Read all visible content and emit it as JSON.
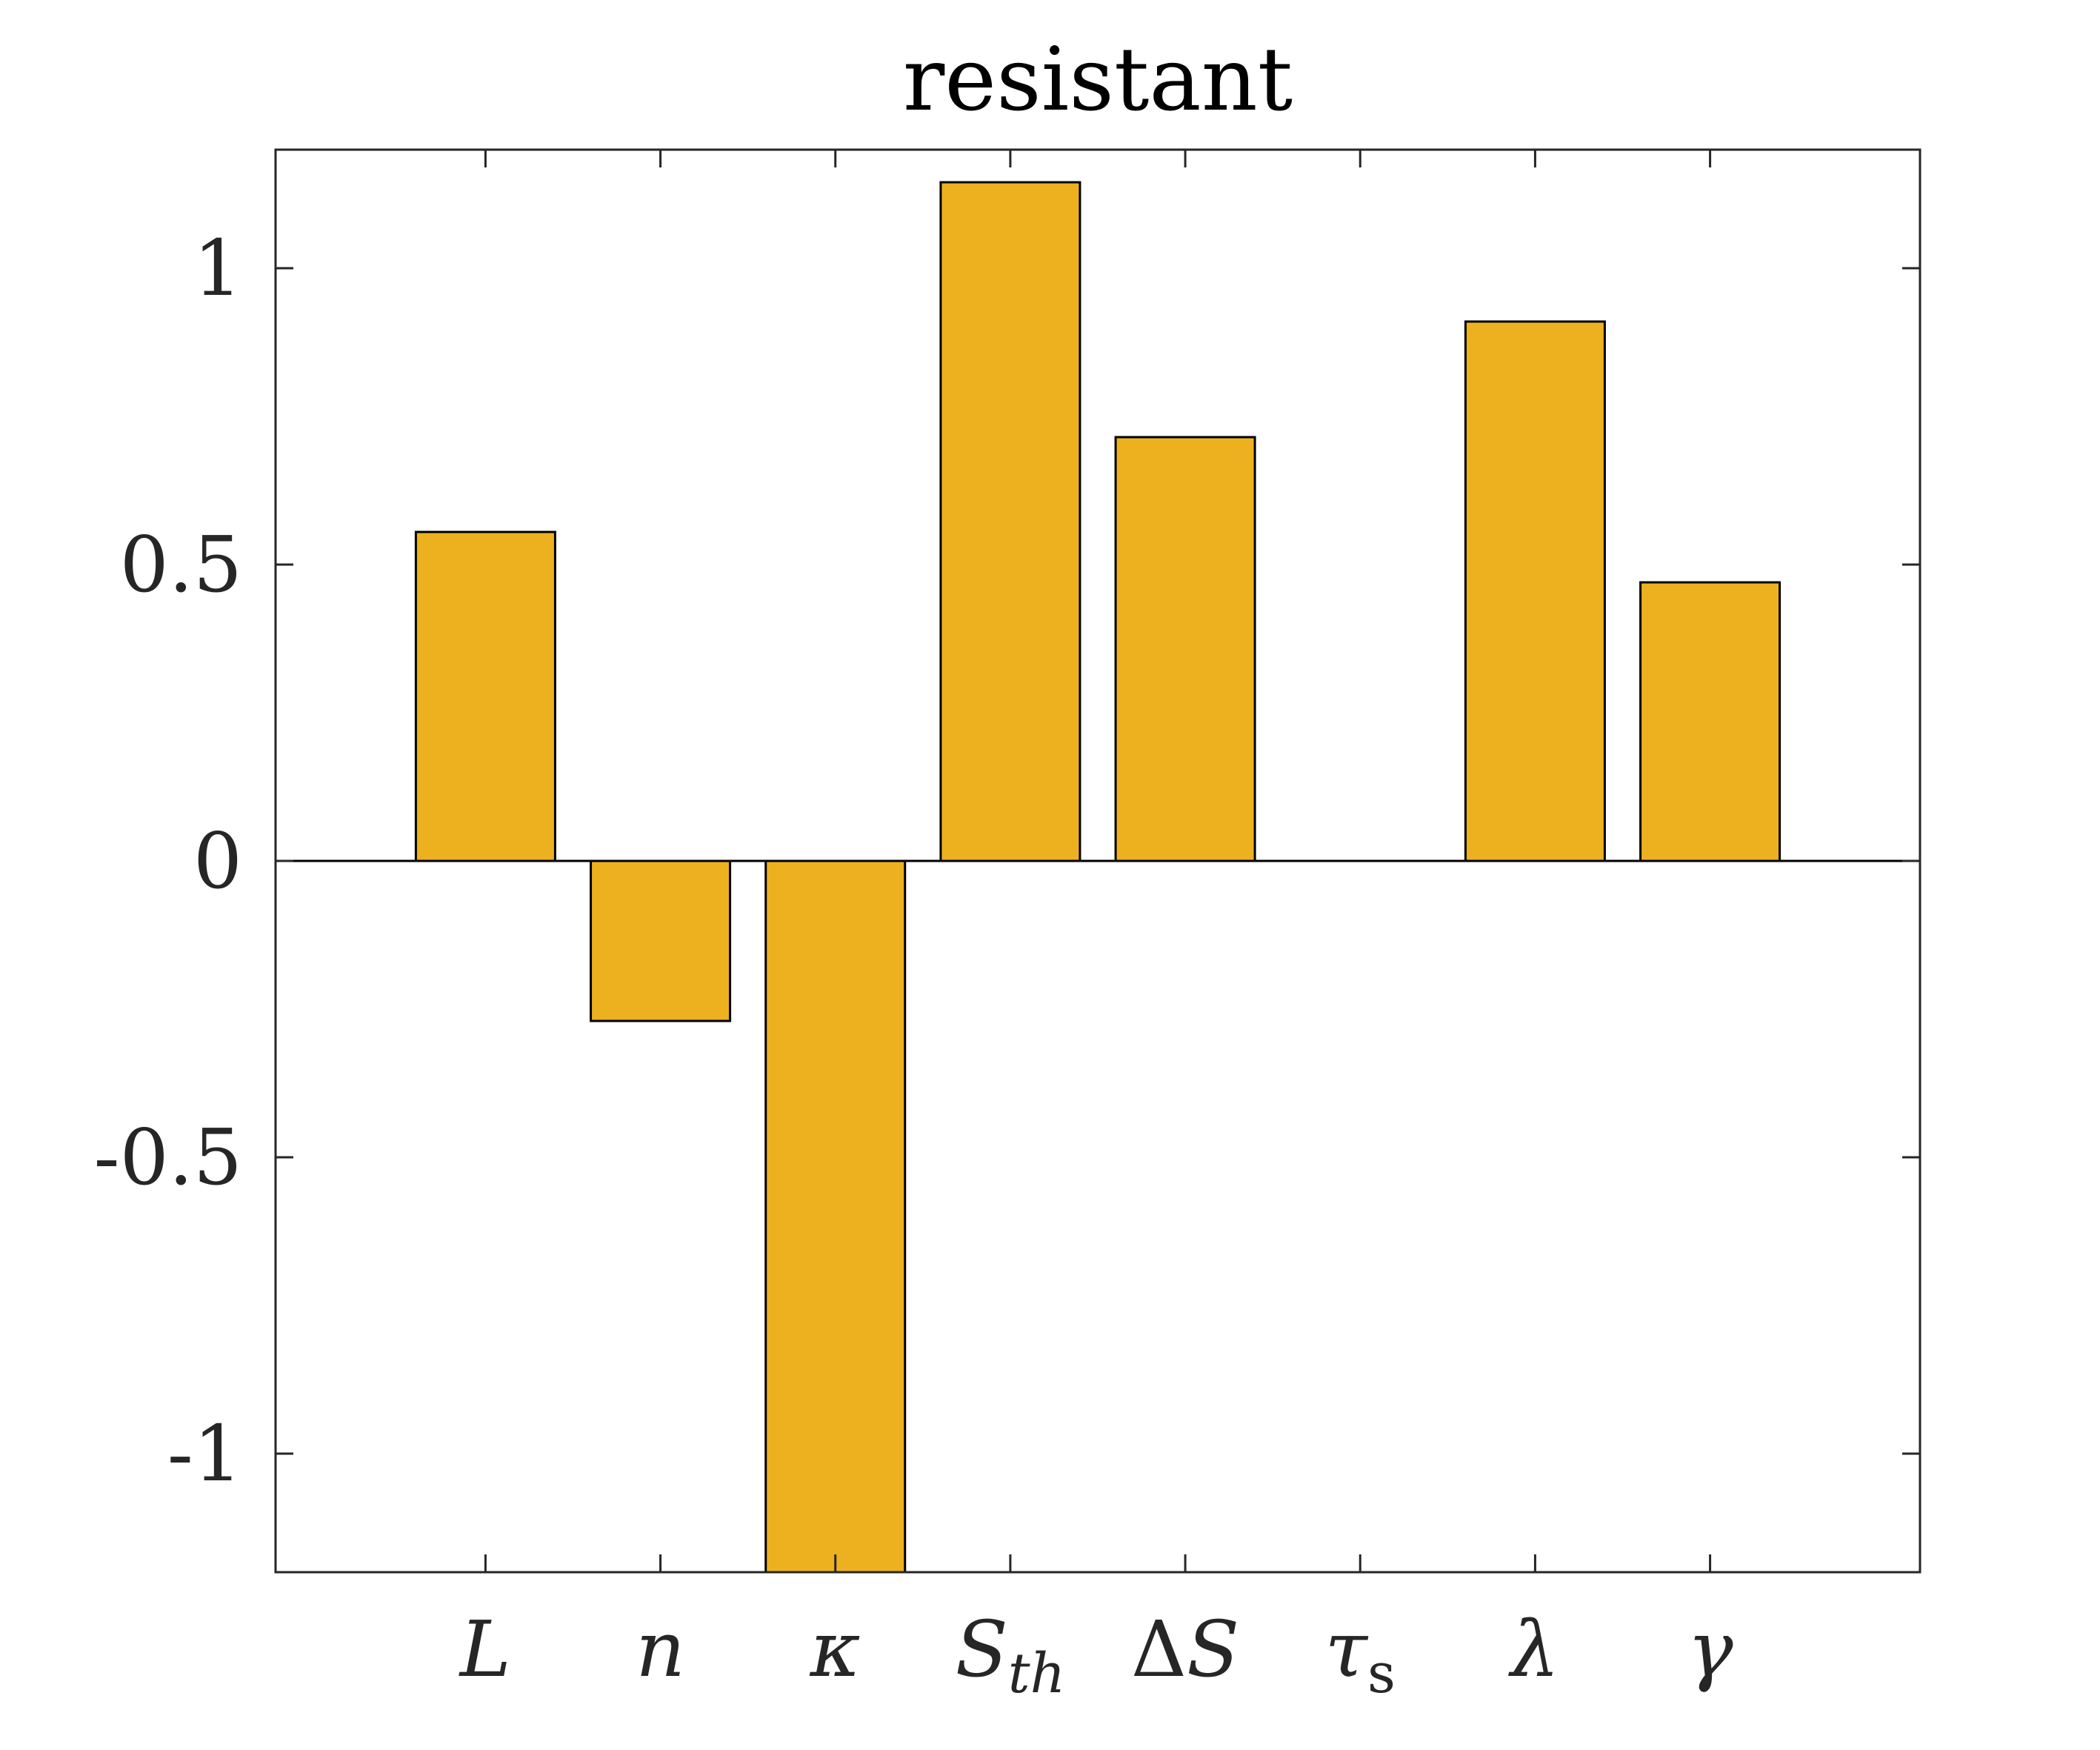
{
  "chart_data": {
    "type": "bar",
    "title": "resistant",
    "xlabel": "",
    "ylabel": "",
    "categories": [
      "L",
      "n",
      "κ",
      "S_th",
      "ΔS",
      "τ_s",
      "λ",
      "γ"
    ],
    "category_labels": [
      {
        "base": "L",
        "sub": ""
      },
      {
        "base": "n",
        "sub": ""
      },
      {
        "base": "κ",
        "sub": ""
      },
      {
        "base": "S",
        "sub": "th"
      },
      {
        "base": "ΔS",
        "sub": ""
      },
      {
        "base": "τ",
        "sub": "s"
      },
      {
        "base": "λ",
        "sub": ""
      },
      {
        "base": "γ",
        "sub": ""
      }
    ],
    "values": [
      0.555,
      -0.27,
      -1.2,
      1.145,
      0.715,
      0.0,
      0.91,
      0.47
    ],
    "ylim": [
      -1.2,
      1.2
    ],
    "xlim": [
      -0.2,
      9.2
    ],
    "yticks": [
      -1,
      -0.5,
      0,
      0.5,
      1
    ],
    "ytick_labels": [
      "-1",
      "-0.5",
      "0",
      "0.5",
      "1"
    ],
    "bar_color": "#EDB120",
    "edge_color": "#000000",
    "grid": false,
    "legend": "none"
  }
}
